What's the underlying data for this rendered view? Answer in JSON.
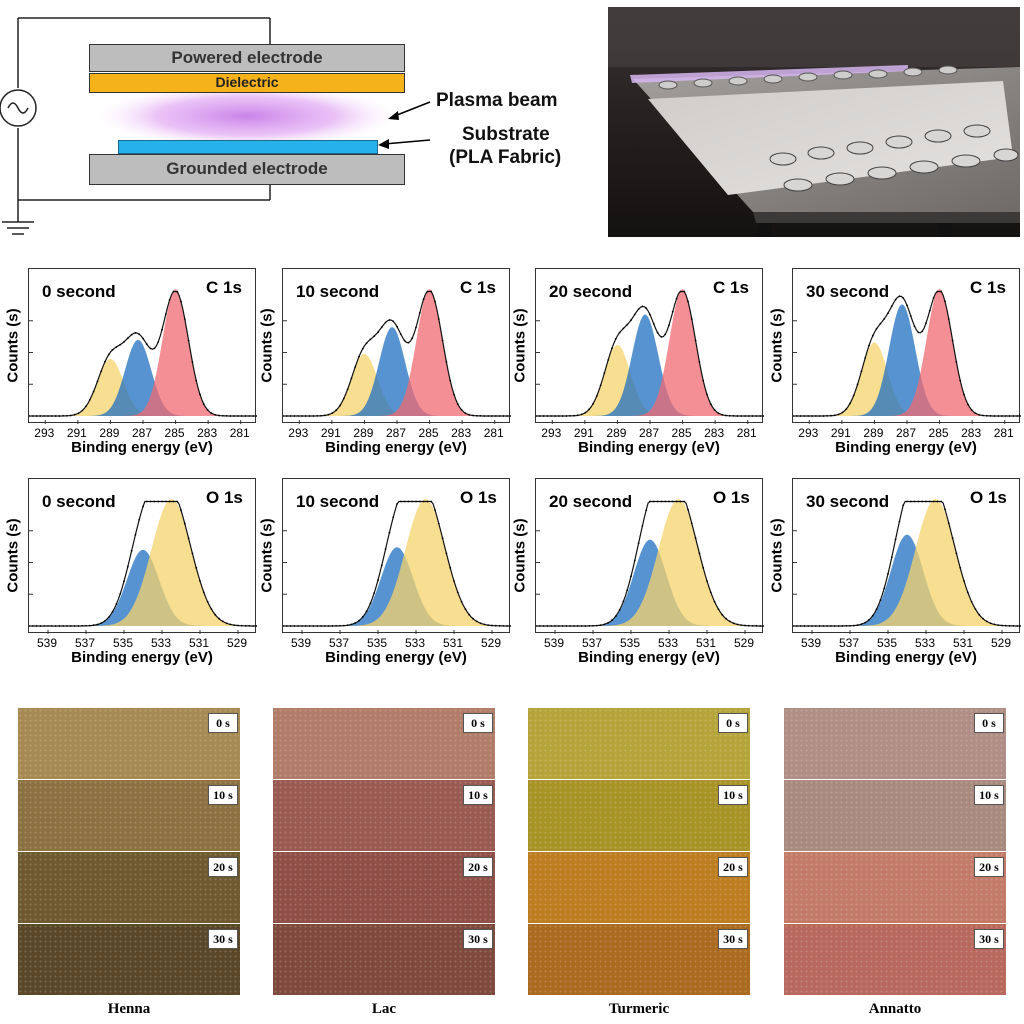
{
  "schematic": {
    "powered_electrode": "Powered electrode",
    "dielectric": "Dielectric",
    "grounded_electrode": "Grounded electrode",
    "plasma_beam": "Plasma beam",
    "substrate_line1": "Substrate",
    "substrate_line2": "(PLA Fabric)"
  },
  "chart_data": [
    {
      "type": "line",
      "panel": "C 1s, 0 second",
      "title": "0 second",
      "label": "C 1s",
      "xlabel": "Binding energy (eV)",
      "ylabel": "Counts (s)",
      "xlim": [
        294,
        280
      ],
      "xticks": [
        293,
        291,
        289,
        287,
        285,
        283,
        281
      ],
      "series": [
        {
          "name": "envelope",
          "x": [
            292,
            290,
            289,
            288,
            287.3,
            286.8,
            286,
            285,
            284,
            283
          ],
          "y": [
            0,
            0.15,
            0.45,
            0.5,
            0.66,
            0.62,
            0.7,
            1.0,
            0.6,
            0.05
          ]
        }
      ],
      "peaks": [
        {
          "center": 289,
          "height": 0.45,
          "color": "#f6d36b"
        },
        {
          "center": 287.3,
          "height": 0.6,
          "color": "#1f6fc0"
        },
        {
          "center": 285,
          "height": 1.0,
          "color": "#f06a72"
        }
      ]
    },
    {
      "type": "line",
      "panel": "C 1s, 10 second",
      "title": "10 second",
      "label": "C 1s",
      "xlabel": "Binding energy (eV)",
      "ylabel": "Counts (s)",
      "xlim": [
        294,
        280
      ],
      "xticks": [
        293,
        291,
        289,
        287,
        285,
        283,
        281
      ],
      "series": [
        {
          "name": "envelope",
          "x": [
            292,
            289,
            287.3,
            286.5,
            285,
            283
          ],
          "y": [
            0,
            0.49,
            0.7,
            0.64,
            1.0,
            0.05
          ]
        }
      ],
      "peaks": [
        {
          "center": 289,
          "height": 0.49,
          "color": "#f6d36b"
        },
        {
          "center": 287.3,
          "height": 0.7,
          "color": "#1f6fc0"
        },
        {
          "center": 285,
          "height": 1.0,
          "color": "#f06a72"
        }
      ]
    },
    {
      "type": "line",
      "panel": "C 1s, 20 second",
      "title": "20 second",
      "label": "C 1s",
      "xlabel": "Binding energy (eV)",
      "ylabel": "Counts (s)",
      "xlim": [
        294,
        280
      ],
      "xticks": [
        293,
        291,
        289,
        287,
        285,
        283,
        281
      ],
      "series": [
        {
          "name": "envelope",
          "x": [
            292,
            289,
            287.3,
            286.5,
            285,
            283
          ],
          "y": [
            0,
            0.56,
            0.8,
            0.72,
            1.0,
            0.05
          ]
        }
      ],
      "peaks": [
        {
          "center": 289,
          "height": 0.56,
          "color": "#f6d36b"
        },
        {
          "center": 287.3,
          "height": 0.8,
          "color": "#1f6fc0"
        },
        {
          "center": 285,
          "height": 1.0,
          "color": "#f06a72"
        }
      ]
    },
    {
      "type": "line",
      "panel": "C 1s, 30 second",
      "title": "30 second",
      "label": "C 1s",
      "xlabel": "Binding energy (eV)",
      "ylabel": "Counts (s)",
      "xlim": [
        294,
        280
      ],
      "xticks": [
        293,
        291,
        289,
        287,
        285,
        283,
        281
      ],
      "series": [
        {
          "name": "envelope",
          "x": [
            292,
            289,
            287.3,
            286.5,
            285,
            283
          ],
          "y": [
            0,
            0.58,
            0.88,
            0.8,
            1.0,
            0.05
          ]
        }
      ],
      "peaks": [
        {
          "center": 289,
          "height": 0.58,
          "color": "#f6d36b"
        },
        {
          "center": 287.3,
          "height": 0.88,
          "color": "#1f6fc0"
        },
        {
          "center": 285,
          "height": 1.0,
          "color": "#f06a72"
        }
      ]
    },
    {
      "type": "line",
      "panel": "O 1s, 0 second",
      "title": "0 second",
      "label": "O 1s",
      "xlabel": "Binding energy (eV)",
      "ylabel": "Counts (s)",
      "xlim": [
        540,
        528
      ],
      "xticks": [
        539,
        537,
        535,
        533,
        531,
        529
      ],
      "series": [
        {
          "name": "envelope",
          "x": [
            538,
            535,
            534,
            533,
            532.5,
            531,
            529
          ],
          "y": [
            0,
            0.2,
            0.65,
            0.95,
            1.0,
            0.3,
            0.02
          ]
        }
      ],
      "peaks": [
        {
          "center": 534,
          "height": 0.6,
          "color": "#1f6fc0"
        },
        {
          "center": 532.5,
          "height": 1.0,
          "color": "#f6d36b"
        }
      ]
    },
    {
      "type": "line",
      "panel": "O 1s, 10 second",
      "title": "10 second",
      "label": "O 1s",
      "xlabel": "Binding energy (eV)",
      "ylabel": "Counts (s)",
      "xlim": [
        540,
        528
      ],
      "xticks": [
        539,
        537,
        535,
        533,
        531,
        529
      ],
      "series": [
        {
          "name": "envelope",
          "x": [
            538,
            535,
            534,
            533,
            532.5,
            531,
            529
          ],
          "y": [
            0,
            0.2,
            0.68,
            0.95,
            1.0,
            0.3,
            0.02
          ]
        }
      ],
      "peaks": [
        {
          "center": 534,
          "height": 0.62,
          "color": "#1f6fc0"
        },
        {
          "center": 532.5,
          "height": 1.0,
          "color": "#f6d36b"
        }
      ]
    },
    {
      "type": "line",
      "panel": "O 1s, 20 second",
      "title": "20 second",
      "label": "O 1s",
      "xlabel": "Binding energy (eV)",
      "ylabel": "Counts (s)",
      "xlim": [
        540,
        528
      ],
      "xticks": [
        539,
        537,
        535,
        533,
        531,
        529
      ],
      "series": [
        {
          "name": "envelope",
          "x": [
            538,
            535,
            534,
            533,
            532.5,
            531,
            529
          ],
          "y": [
            0,
            0.25,
            0.78,
            0.97,
            1.0,
            0.3,
            0.02
          ]
        }
      ],
      "peaks": [
        {
          "center": 534,
          "height": 0.68,
          "color": "#1f6fc0"
        },
        {
          "center": 532.5,
          "height": 1.0,
          "color": "#f6d36b"
        }
      ]
    },
    {
      "type": "line",
      "panel": "O 1s, 30 second",
      "title": "30 second",
      "label": "O 1s",
      "xlabel": "Binding energy (eV)",
      "ylabel": "Counts (s)",
      "xlim": [
        540,
        528
      ],
      "xticks": [
        539,
        537,
        535,
        533,
        531,
        529
      ],
      "series": [
        {
          "name": "envelope",
          "x": [
            538,
            535,
            534,
            533,
            532.5,
            531,
            529
          ],
          "y": [
            0,
            0.3,
            0.85,
            0.98,
            1.0,
            0.3,
            0.02
          ]
        }
      ],
      "peaks": [
        {
          "center": 534,
          "height": 0.72,
          "color": "#1f6fc0"
        },
        {
          "center": 532.5,
          "height": 1.0,
          "color": "#f6d36b"
        }
      ]
    }
  ],
  "swatches": {
    "time_labels": [
      "0 s",
      "10 s",
      "20 s",
      "30 s"
    ],
    "dyes": [
      {
        "name": "Henna",
        "colors": [
          "#a78a53",
          "#8c7241",
          "#6f5930",
          "#5a4727"
        ]
      },
      {
        "name": "Lac",
        "colors": [
          "#b17d68",
          "#985a51",
          "#8e4f47",
          "#7f4a3d"
        ]
      },
      {
        "name": "Turmeric",
        "colors": [
          "#b4a43a",
          "#a89327",
          "#bd7d21",
          "#aa6a1f"
        ]
      },
      {
        "name": "Annatto",
        "colors": [
          "#b08e85",
          "#a98a7f",
          "#c37a69",
          "#b8685c"
        ]
      }
    ]
  }
}
